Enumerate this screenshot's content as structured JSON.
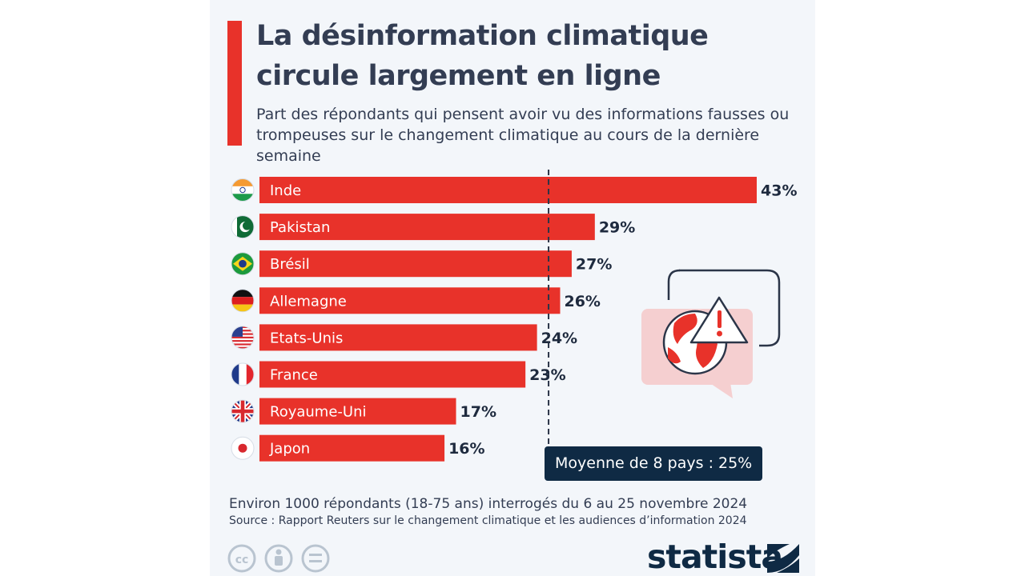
{
  "header": {
    "title": "La désinformation climatique circule largement en ligne",
    "subtitle": "Part des répondants qui pensent avoir vu des informations fausses ou trompeuses sur le changement climatique au cours de la dernière semaine"
  },
  "chart_data": {
    "type": "bar",
    "orientation": "horizontal",
    "categories": [
      "Inde",
      "Pakistan",
      "Brésil",
      "Allemagne",
      "Etats-Unis",
      "France",
      "Royaume-Uni",
      "Japon"
    ],
    "values": [
      43,
      29,
      27,
      26,
      24,
      23,
      17,
      16
    ],
    "value_labels": [
      "43%",
      "29%",
      "27%",
      "26%",
      "24%",
      "23%",
      "17%",
      "16%"
    ],
    "flags": [
      "india-flag-icon",
      "pakistan-flag-icon",
      "brazil-flag-icon",
      "germany-flag-icon",
      "usa-flag-icon",
      "france-flag-icon",
      "uk-flag-icon",
      "japan-flag-icon"
    ],
    "reference_line": {
      "value": 25,
      "label": "Moyenne de 8 pays : 25%"
    },
    "bar_color": "#e8322a",
    "xlim": [
      0,
      45
    ],
    "grid": false
  },
  "illustration": {
    "icon": "globe-warning-speech-bubble-icon",
    "accent": "#e8322a",
    "fill": "#f5cfd0"
  },
  "footer": {
    "note": "Environ 1000 répondants (18-75 ans) interrogés du 6 au 25 novembre 2024",
    "source": "Source : Rapport Reuters sur le changement climatique et les audiences d’information 2024",
    "license_icons": [
      "cc-icon",
      "by-icon",
      "nd-icon"
    ],
    "brand": "statista"
  },
  "colors": {
    "text": "#333d53",
    "navy": "#0f2a44",
    "accent": "#e8322a",
    "background": "#f3f6fa"
  }
}
